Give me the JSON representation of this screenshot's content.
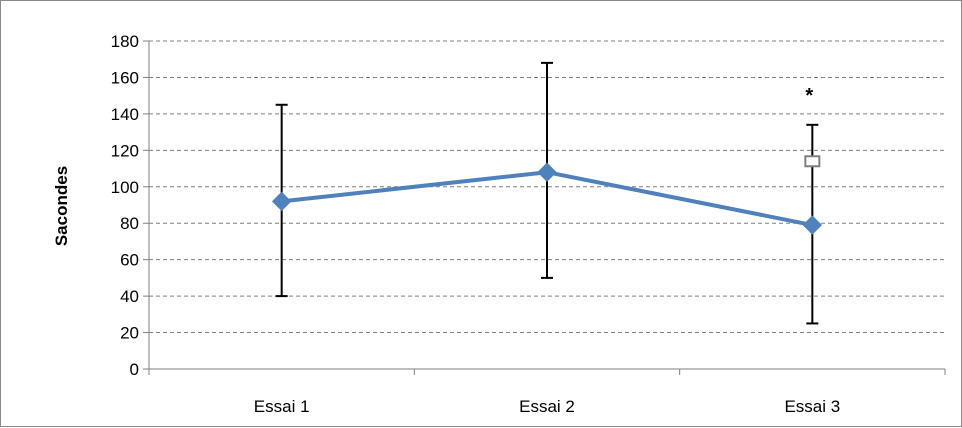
{
  "chart_data": {
    "type": "line",
    "categories": [
      "Essai 1",
      "Essai 2",
      "Essai 3"
    ],
    "series": [
      {
        "values": [
          92,
          108,
          79
        ],
        "error_low": [
          40,
          50,
          25
        ],
        "error_high": [
          145,
          168,
          134
        ],
        "color": "#4f81bd",
        "marker": "diamond"
      }
    ],
    "extra_point": {
      "category": "Essai 3",
      "value": 114,
      "marker": "square-open"
    },
    "annotations": [
      {
        "category": "Essai 3",
        "text": "*",
        "value": 145
      }
    ],
    "ylabel": "Sacondes",
    "xlabel": "",
    "title": "",
    "ylim": [
      0,
      180
    ],
    "yticks": [
      0,
      20,
      40,
      60,
      80,
      100,
      120,
      140,
      160,
      180
    ],
    "grid": "horizontal-dashed",
    "legend": "none"
  }
}
